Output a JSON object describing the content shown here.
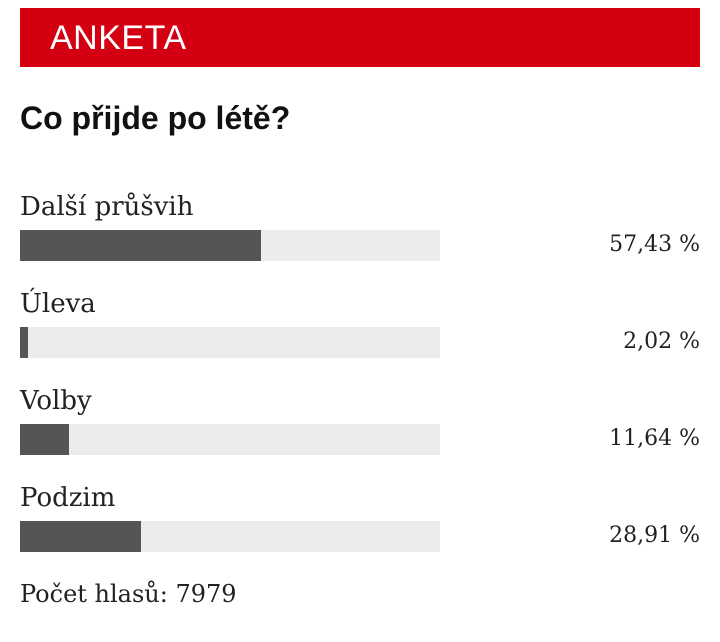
{
  "chart_data": {
    "type": "bar",
    "header": "ANKETA",
    "title": "Co přijde po létě?",
    "categories": [
      "Další průšvih",
      "Úleva",
      "Volby",
      "Podzim"
    ],
    "values": [
      57.43,
      2.02,
      11.64,
      28.91
    ],
    "value_labels": [
      "57,43 %",
      "2,02 %",
      "11,64 %",
      "28,91 %"
    ],
    "xlim": [
      0,
      100
    ],
    "color": "#555555",
    "footer": {
      "label": "Počet hlasů:",
      "count": 7979
    }
  }
}
